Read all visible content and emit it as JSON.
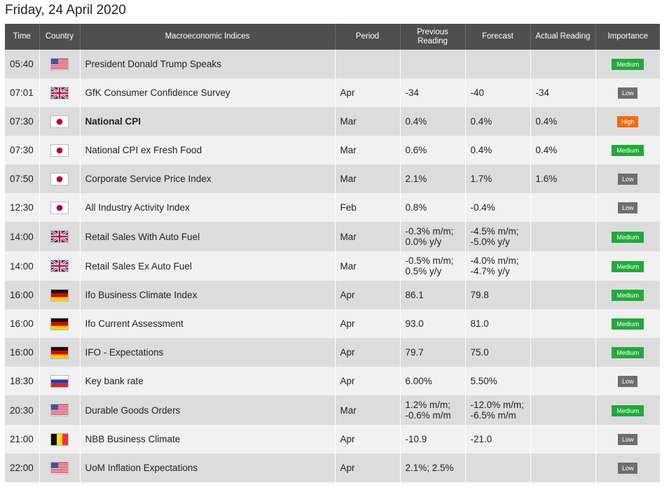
{
  "title": "Friday, 24 April 2020",
  "headers": {
    "time": "Time",
    "country": "Country",
    "indices": "Macroeconomic Indices",
    "period": "Period",
    "previous": "Previous Reading",
    "forecast": "Forecast",
    "actual": "Actual Reading",
    "importance": "Importance"
  },
  "rows": [
    {
      "time": "05:40",
      "flag": "us-flag-icon",
      "index": "President Donald Trump Speaks",
      "bold": false,
      "period": "",
      "previous": [
        ""
      ],
      "forecast": [
        ""
      ],
      "actual": "",
      "actual_color": "",
      "importance": "Medium"
    },
    {
      "time": "07:01",
      "flag": "uk-flag-icon",
      "index": "GfK Consumer Confidence Survey",
      "bold": false,
      "period": "Apr",
      "previous": [
        "-34"
      ],
      "forecast": [
        "-40"
      ],
      "actual": "-34",
      "actual_color": "green",
      "importance": "Low"
    },
    {
      "time": "07:30",
      "flag": "japan-flag-icon",
      "index": "National CPI",
      "bold": true,
      "period": "Mar",
      "previous": [
        "0.4%"
      ],
      "forecast": [
        "0.4%"
      ],
      "actual": "0.4%",
      "actual_color": "",
      "importance": "High"
    },
    {
      "time": "07:30",
      "flag": "japan-flag-icon",
      "index": "National CPI ex Fresh Food",
      "bold": false,
      "period": "Mar",
      "previous": [
        "0.6%"
      ],
      "forecast": [
        "0.4%"
      ],
      "actual": "0.4%",
      "actual_color": "",
      "importance": "Medium"
    },
    {
      "time": "07:50",
      "flag": "japan-flag-icon",
      "index": "Corporate Service Price Index",
      "bold": false,
      "period": "Mar",
      "previous": [
        "2.1%"
      ],
      "forecast": [
        "1.7%"
      ],
      "actual": "1.6%",
      "actual_color": "red",
      "importance": "Low"
    },
    {
      "time": "12:30",
      "flag": "japan-flag-icon",
      "index": "All Industry Activity Index",
      "bold": false,
      "period": "Feb",
      "previous": [
        "0.8%"
      ],
      "forecast": [
        "-0.4%"
      ],
      "actual": "",
      "actual_color": "",
      "importance": "Low"
    },
    {
      "time": "14:00",
      "flag": "uk-flag-icon",
      "index": "Retail Sales With Auto Fuel",
      "bold": false,
      "period": "Mar",
      "previous": [
        "-0.3% m/m;",
        "0.0% y/y"
      ],
      "forecast": [
        "-4.5% m/m;",
        "-5.0% y/y"
      ],
      "actual": "",
      "actual_color": "",
      "importance": "Medium"
    },
    {
      "time": "14:00",
      "flag": "uk-flag-icon",
      "index": "Retail Sales Ex Auto Fuel",
      "bold": false,
      "period": "Mar",
      "previous": [
        "-0.5% m/m;",
        "0.5% y/y"
      ],
      "forecast": [
        "-4.0% m/m;",
        "-4.7% y/y"
      ],
      "actual": "",
      "actual_color": "",
      "importance": "Medium"
    },
    {
      "time": "16:00",
      "flag": "germany-flag-icon",
      "index": "Ifo Business Climate Index",
      "bold": false,
      "period": "Apr",
      "previous": [
        "86.1"
      ],
      "forecast": [
        "79.8"
      ],
      "actual": "",
      "actual_color": "",
      "importance": "Medium"
    },
    {
      "time": "16:00",
      "flag": "germany-flag-icon",
      "index": "Ifo Current Assessment",
      "bold": false,
      "period": "Apr",
      "previous": [
        "93.0"
      ],
      "forecast": [
        "81.0"
      ],
      "actual": "",
      "actual_color": "",
      "importance": "Medium"
    },
    {
      "time": "16:00",
      "flag": "germany-flag-icon",
      "index": "IFO - Expectations",
      "bold": false,
      "period": "Apr",
      "previous": [
        "79.7"
      ],
      "forecast": [
        "75.0"
      ],
      "actual": "",
      "actual_color": "",
      "importance": "Medium"
    },
    {
      "time": "18:30",
      "flag": "russia-flag-icon",
      "index": "Key bank rate",
      "bold": false,
      "period": "Apr",
      "previous": [
        "6.00%"
      ],
      "forecast": [
        "5.50%"
      ],
      "actual": "",
      "actual_color": "",
      "importance": "Low"
    },
    {
      "time": "20:30",
      "flag": "us-flag-icon",
      "index": "Durable Goods Orders",
      "bold": false,
      "period": "Mar",
      "previous": [
        "1.2% m/m;",
        "-0.6% m/m"
      ],
      "forecast": [
        "-12.0% m/m;",
        "-6.5% m/m"
      ],
      "actual": "",
      "actual_color": "",
      "importance": "Medium"
    },
    {
      "time": "21:00",
      "flag": "belgium-flag-icon",
      "index": "NBB Business Climate",
      "bold": false,
      "period": "Apr",
      "previous": [
        "-10.9"
      ],
      "forecast": [
        "-21.0"
      ],
      "actual": "",
      "actual_color": "",
      "importance": "Low"
    },
    {
      "time": "22:00",
      "flag": "us-flag-icon",
      "index": "UoM Inflation Expectations",
      "bold": false,
      "period": "Apr",
      "previous": [
        "2.1%; 2.5%"
      ],
      "forecast": [
        ""
      ],
      "actual": "",
      "actual_color": "",
      "importance": "Low"
    }
  ]
}
